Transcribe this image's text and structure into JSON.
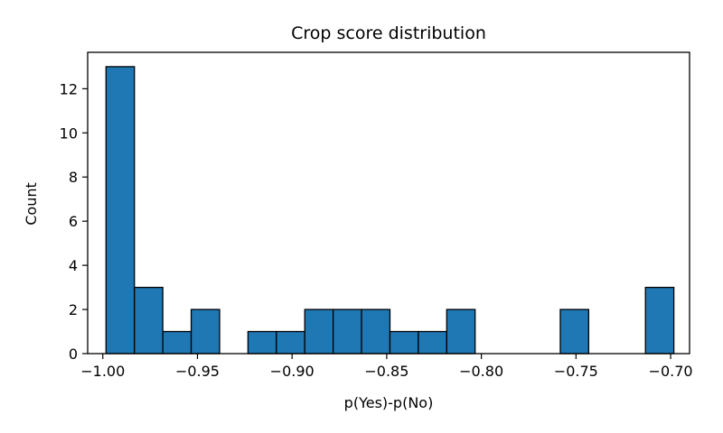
{
  "chart_data": {
    "type": "bar",
    "title": "Crop score distribution",
    "xlabel": "p(Yes)-p(No)",
    "ylabel": "Count",
    "xlim": [
      -1.008,
      -0.69
    ],
    "ylim": [
      0,
      13.65
    ],
    "xticks": [
      -1.0,
      -0.95,
      -0.9,
      -0.85,
      -0.8,
      -0.75,
      -0.7
    ],
    "xtick_labels": [
      "−1.00",
      "−0.95",
      "−0.90",
      "−0.85",
      "−0.80",
      "−0.75",
      "−0.70"
    ],
    "yticks": [
      0,
      2,
      4,
      6,
      8,
      10,
      12
    ],
    "ytick_labels": [
      "0",
      "2",
      "4",
      "6",
      "8",
      "10",
      "12"
    ],
    "grid": false,
    "bar_color": "#1f77b4",
    "edge_color": "#000000",
    "bins": [
      {
        "start": -0.9983,
        "end": -0.9833,
        "count": 13
      },
      {
        "start": -0.9833,
        "end": -0.9683,
        "count": 3
      },
      {
        "start": -0.9683,
        "end": -0.9533,
        "count": 1
      },
      {
        "start": -0.9533,
        "end": -0.9383,
        "count": 2
      },
      {
        "start": -0.9383,
        "end": -0.9233,
        "count": 0
      },
      {
        "start": -0.9233,
        "end": -0.9083,
        "count": 1
      },
      {
        "start": -0.9083,
        "end": -0.8933,
        "count": 1
      },
      {
        "start": -0.8933,
        "end": -0.8783,
        "count": 2
      },
      {
        "start": -0.8783,
        "end": -0.8633,
        "count": 2
      },
      {
        "start": -0.8633,
        "end": -0.8483,
        "count": 2
      },
      {
        "start": -0.8483,
        "end": -0.8333,
        "count": 1
      },
      {
        "start": -0.8333,
        "end": -0.8183,
        "count": 1
      },
      {
        "start": -0.8183,
        "end": -0.8033,
        "count": 2
      },
      {
        "start": -0.8033,
        "end": -0.7883,
        "count": 0
      },
      {
        "start": -0.7883,
        "end": -0.7733,
        "count": 0
      },
      {
        "start": -0.7733,
        "end": -0.7583,
        "count": 0
      },
      {
        "start": -0.7583,
        "end": -0.7433,
        "count": 2
      },
      {
        "start": -0.7433,
        "end": -0.7283,
        "count": 0
      },
      {
        "start": -0.7283,
        "end": -0.7133,
        "count": 0
      },
      {
        "start": -0.7133,
        "end": -0.6983,
        "count": 3
      }
    ]
  }
}
